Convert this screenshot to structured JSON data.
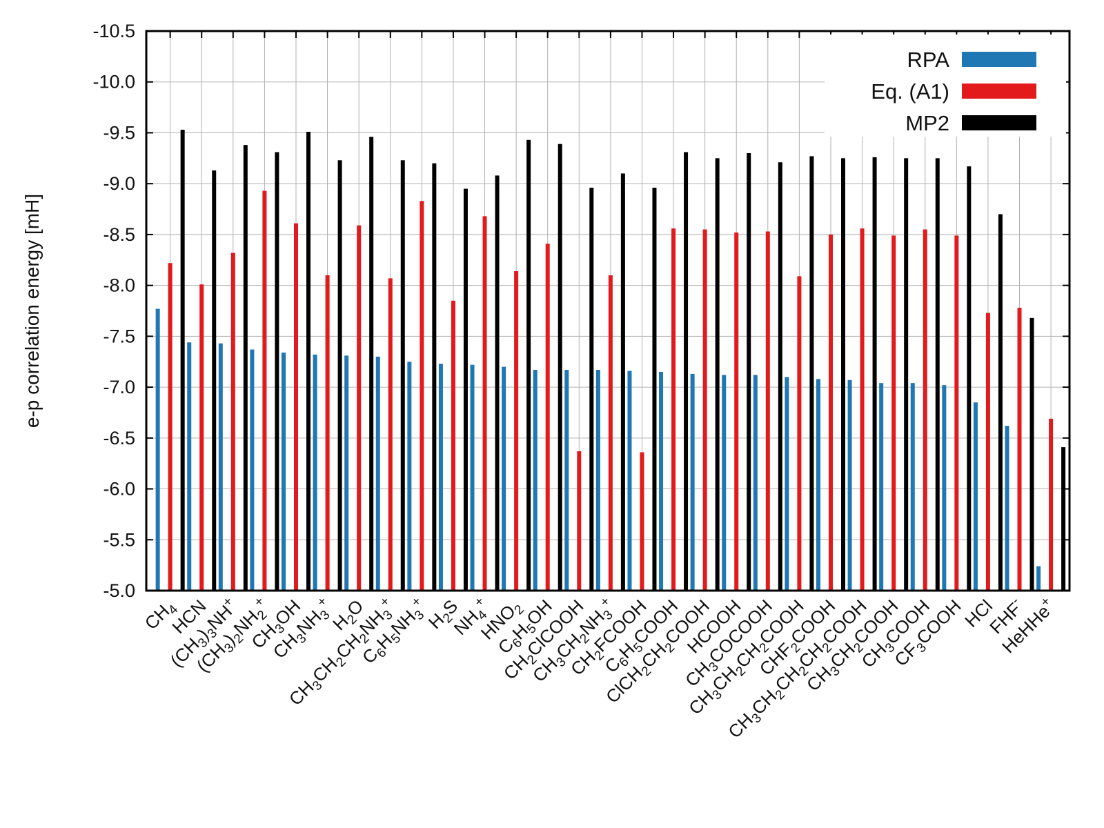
{
  "chart_data": {
    "type": "bar",
    "title": "",
    "xlabel": "",
    "ylabel": "e-p correlation energy [mH]",
    "ylim": [
      -5.0,
      -10.5
    ],
    "yticks": [
      "-10.5",
      "-10.0",
      "-9.5",
      "-9.0",
      "-8.5",
      "-8.0",
      "-7.5",
      "-7.0",
      "-6.5",
      "-6.0",
      "-5.5",
      "-5.0"
    ],
    "grid": true,
    "legend_position": "top-right",
    "categories": [
      "CH4",
      "HCN",
      "(CH3)3NH+",
      "(CH3)2NH2+",
      "CH3OH",
      "CH3NH3+",
      "H2O",
      "CH3CH2CH2NH3+",
      "C6H5NH3+",
      "H2S",
      "NH4+",
      "HNO2",
      "C6H5OH",
      "CH2ClCOOH",
      "CH3CH2NH3+",
      "CH2FCOOH",
      "C6H5COOH",
      "ClCH2CH2COOH",
      "HCOOH",
      "CH3COCOOH",
      "CH3CH2CH2COOH",
      "CHF2COOH",
      "CH3CH2CH2CH2COOH",
      "CH3CH2COOH",
      "CH3COOH",
      "CF3COOH",
      "HCl",
      "FHF-",
      "HeHHe+"
    ],
    "category_labels": [
      [
        {
          "t": "CH"
        },
        {
          "t": "4",
          "s": "sub"
        }
      ],
      [
        {
          "t": "HCN"
        }
      ],
      [
        {
          "t": "(CH"
        },
        {
          "t": "3",
          "s": "sub"
        },
        {
          "t": ")"
        },
        {
          "t": "3",
          "s": "sub"
        },
        {
          "t": "NH"
        },
        {
          "t": "+",
          "s": "sup"
        }
      ],
      [
        {
          "t": "(CH"
        },
        {
          "t": "3",
          "s": "sub"
        },
        {
          "t": ")"
        },
        {
          "t": "2",
          "s": "sub"
        },
        {
          "t": "NH"
        },
        {
          "t": "2",
          "s": "sub"
        },
        {
          "t": "+",
          "s": "sup"
        }
      ],
      [
        {
          "t": "CH"
        },
        {
          "t": "3",
          "s": "sub"
        },
        {
          "t": "OH"
        }
      ],
      [
        {
          "t": "CH"
        },
        {
          "t": "3",
          "s": "sub"
        },
        {
          "t": "NH"
        },
        {
          "t": "3",
          "s": "sub"
        },
        {
          "t": "+",
          "s": "sup"
        }
      ],
      [
        {
          "t": "H"
        },
        {
          "t": "2",
          "s": "sub"
        },
        {
          "t": "O"
        }
      ],
      [
        {
          "t": "CH"
        },
        {
          "t": "3",
          "s": "sub"
        },
        {
          "t": "CH"
        },
        {
          "t": "2",
          "s": "sub"
        },
        {
          "t": "CH"
        },
        {
          "t": "2",
          "s": "sub"
        },
        {
          "t": "NH"
        },
        {
          "t": "3",
          "s": "sub"
        },
        {
          "t": "+",
          "s": "sup"
        }
      ],
      [
        {
          "t": "C"
        },
        {
          "t": "6",
          "s": "sub"
        },
        {
          "t": "H"
        },
        {
          "t": "5",
          "s": "sub"
        },
        {
          "t": "NH"
        },
        {
          "t": "3",
          "s": "sub"
        },
        {
          "t": "+",
          "s": "sup"
        }
      ],
      [
        {
          "t": "H"
        },
        {
          "t": "2",
          "s": "sub"
        },
        {
          "t": "S"
        }
      ],
      [
        {
          "t": "NH"
        },
        {
          "t": "4",
          "s": "sub"
        },
        {
          "t": "+",
          "s": "sup"
        }
      ],
      [
        {
          "t": "HNO"
        },
        {
          "t": "2",
          "s": "sub"
        }
      ],
      [
        {
          "t": "C"
        },
        {
          "t": "6",
          "s": "sub"
        },
        {
          "t": "H"
        },
        {
          "t": "5",
          "s": "sub"
        },
        {
          "t": "OH"
        }
      ],
      [
        {
          "t": "CH"
        },
        {
          "t": "2",
          "s": "sub"
        },
        {
          "t": "ClCOOH"
        }
      ],
      [
        {
          "t": "CH"
        },
        {
          "t": "3",
          "s": "sub"
        },
        {
          "t": "CH"
        },
        {
          "t": "2",
          "s": "sub"
        },
        {
          "t": "NH"
        },
        {
          "t": "3",
          "s": "sub"
        },
        {
          "t": "+",
          "s": "sup"
        }
      ],
      [
        {
          "t": "CH"
        },
        {
          "t": "2",
          "s": "sub"
        },
        {
          "t": "FCOOH"
        }
      ],
      [
        {
          "t": "C"
        },
        {
          "t": "6",
          "s": "sub"
        },
        {
          "t": "H"
        },
        {
          "t": "5",
          "s": "sub"
        },
        {
          "t": "COOH"
        }
      ],
      [
        {
          "t": "ClCH"
        },
        {
          "t": "2",
          "s": "sub"
        },
        {
          "t": "CH"
        },
        {
          "t": "2",
          "s": "sub"
        },
        {
          "t": "COOH"
        }
      ],
      [
        {
          "t": "HCOOH"
        }
      ],
      [
        {
          "t": "CH"
        },
        {
          "t": "3",
          "s": "sub"
        },
        {
          "t": "COCOOH"
        }
      ],
      [
        {
          "t": "CH"
        },
        {
          "t": "3",
          "s": "sub"
        },
        {
          "t": "CH"
        },
        {
          "t": "2",
          "s": "sub"
        },
        {
          "t": "CH"
        },
        {
          "t": "2",
          "s": "sub"
        },
        {
          "t": "COOH"
        }
      ],
      [
        {
          "t": "CHF"
        },
        {
          "t": "2",
          "s": "sub"
        },
        {
          "t": "COOH"
        }
      ],
      [
        {
          "t": "CH"
        },
        {
          "t": "3",
          "s": "sub"
        },
        {
          "t": "CH"
        },
        {
          "t": "2",
          "s": "sub"
        },
        {
          "t": "CH"
        },
        {
          "t": "2",
          "s": "sub"
        },
        {
          "t": "CH"
        },
        {
          "t": "2",
          "s": "sub"
        },
        {
          "t": "COOH"
        }
      ],
      [
        {
          "t": "CH"
        },
        {
          "t": "3",
          "s": "sub"
        },
        {
          "t": "CH"
        },
        {
          "t": "2",
          "s": "sub"
        },
        {
          "t": "COOH"
        }
      ],
      [
        {
          "t": "CH"
        },
        {
          "t": "3",
          "s": "sub"
        },
        {
          "t": "COOH"
        }
      ],
      [
        {
          "t": "CF"
        },
        {
          "t": "3",
          "s": "sub"
        },
        {
          "t": "COOH"
        }
      ],
      [
        {
          "t": "HCl"
        }
      ],
      [
        {
          "t": "FHF"
        },
        {
          "t": "-",
          "s": "sup"
        }
      ],
      [
        {
          "t": "HeHHe"
        },
        {
          "t": "+",
          "s": "sup"
        }
      ]
    ],
    "series": [
      {
        "name": "RPA",
        "color": "#1f77b4",
        "values": [
          -7.77,
          -7.44,
          -7.43,
          -7.37,
          -7.34,
          -7.32,
          -7.31,
          -7.3,
          -7.25,
          -7.23,
          -7.22,
          -7.2,
          -7.17,
          -7.17,
          -7.17,
          -7.16,
          -7.15,
          -7.13,
          -7.12,
          -7.12,
          -7.1,
          -7.08,
          -7.07,
          -7.04,
          -7.04,
          -7.02,
          -6.85,
          -6.62,
          -5.24
        ]
      },
      {
        "name": "Eq. (A1)",
        "color": "#e31a1c",
        "values": [
          -8.22,
          -8.01,
          -8.32,
          -8.93,
          -8.61,
          -8.1,
          -8.59,
          -8.07,
          -8.83,
          -7.85,
          -8.68,
          -8.14,
          -8.41,
          -6.37,
          -8.1,
          -6.36,
          -8.56,
          -8.55,
          -8.52,
          -8.53,
          -8.09,
          -8.5,
          -8.56,
          -8.49,
          -8.55,
          -8.49,
          -7.73,
          -7.78,
          -6.69
        ]
      },
      {
        "name": "MP2",
        "color": "#000000",
        "values": [
          -9.53,
          -9.13,
          -9.38,
          -9.31,
          -9.51,
          -9.23,
          -9.46,
          -9.23,
          -9.2,
          -8.95,
          -9.08,
          -9.43,
          -9.39,
          -8.96,
          -9.1,
          -8.96,
          -9.31,
          -9.25,
          -9.3,
          -9.21,
          -9.27,
          -9.25,
          -9.26,
          -9.25,
          -9.25,
          -9.17,
          -8.7,
          -7.68,
          -6.41
        ]
      }
    ]
  }
}
